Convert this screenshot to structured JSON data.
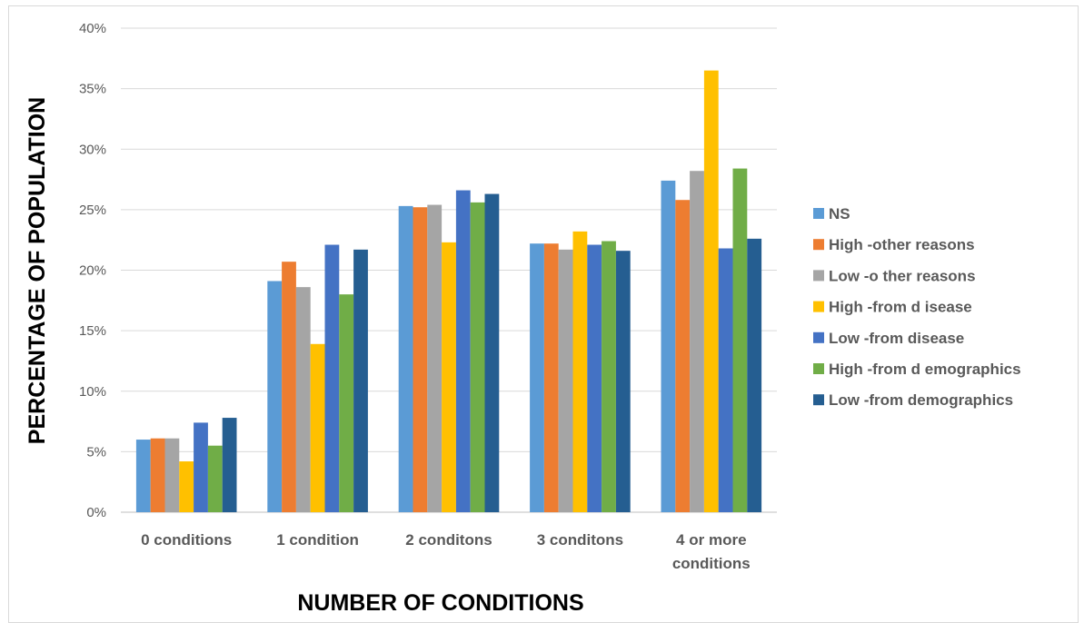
{
  "chart_data": {
    "type": "bar",
    "title": "",
    "xlabel": "NUMBER OF CONDITIONS",
    "ylabel": "PERCENTAGE OF POPULATION",
    "ylim": [
      0,
      40
    ],
    "yticks": [
      "0%",
      "5%",
      "10%",
      "15%",
      "20%",
      "25%",
      "30%",
      "35%",
      "40%"
    ],
    "grid": true,
    "legend_position": "right",
    "categories": [
      "0 conditions",
      "1 condition",
      "2 conditons",
      "3 conditons",
      "4 or more conditions"
    ],
    "series": [
      {
        "name": "NS",
        "color": "#5b9bd5",
        "values": [
          6.0,
          19.1,
          25.3,
          22.2,
          27.4
        ]
      },
      {
        "name": "High -other reasons",
        "color": "#ed7d31",
        "values": [
          6.1,
          20.7,
          25.2,
          22.2,
          25.8
        ]
      },
      {
        "name": "Low -o ther reasons",
        "color": "#a5a5a5",
        "values": [
          6.1,
          18.6,
          25.4,
          21.7,
          28.2
        ]
      },
      {
        "name": "High -from d isease",
        "color": "#ffc000",
        "values": [
          4.2,
          13.9,
          22.3,
          23.2,
          36.5
        ]
      },
      {
        "name": "Low -from disease",
        "color": "#4472c4",
        "values": [
          7.4,
          22.1,
          26.6,
          22.1,
          21.8
        ]
      },
      {
        "name": "High -from d emographics",
        "color": "#70ad47",
        "values": [
          5.5,
          18.0,
          25.6,
          22.4,
          28.4
        ]
      },
      {
        "name": "Low -from demographics",
        "color": "#255e91",
        "values": [
          7.8,
          21.7,
          26.3,
          21.6,
          22.6
        ]
      }
    ]
  }
}
